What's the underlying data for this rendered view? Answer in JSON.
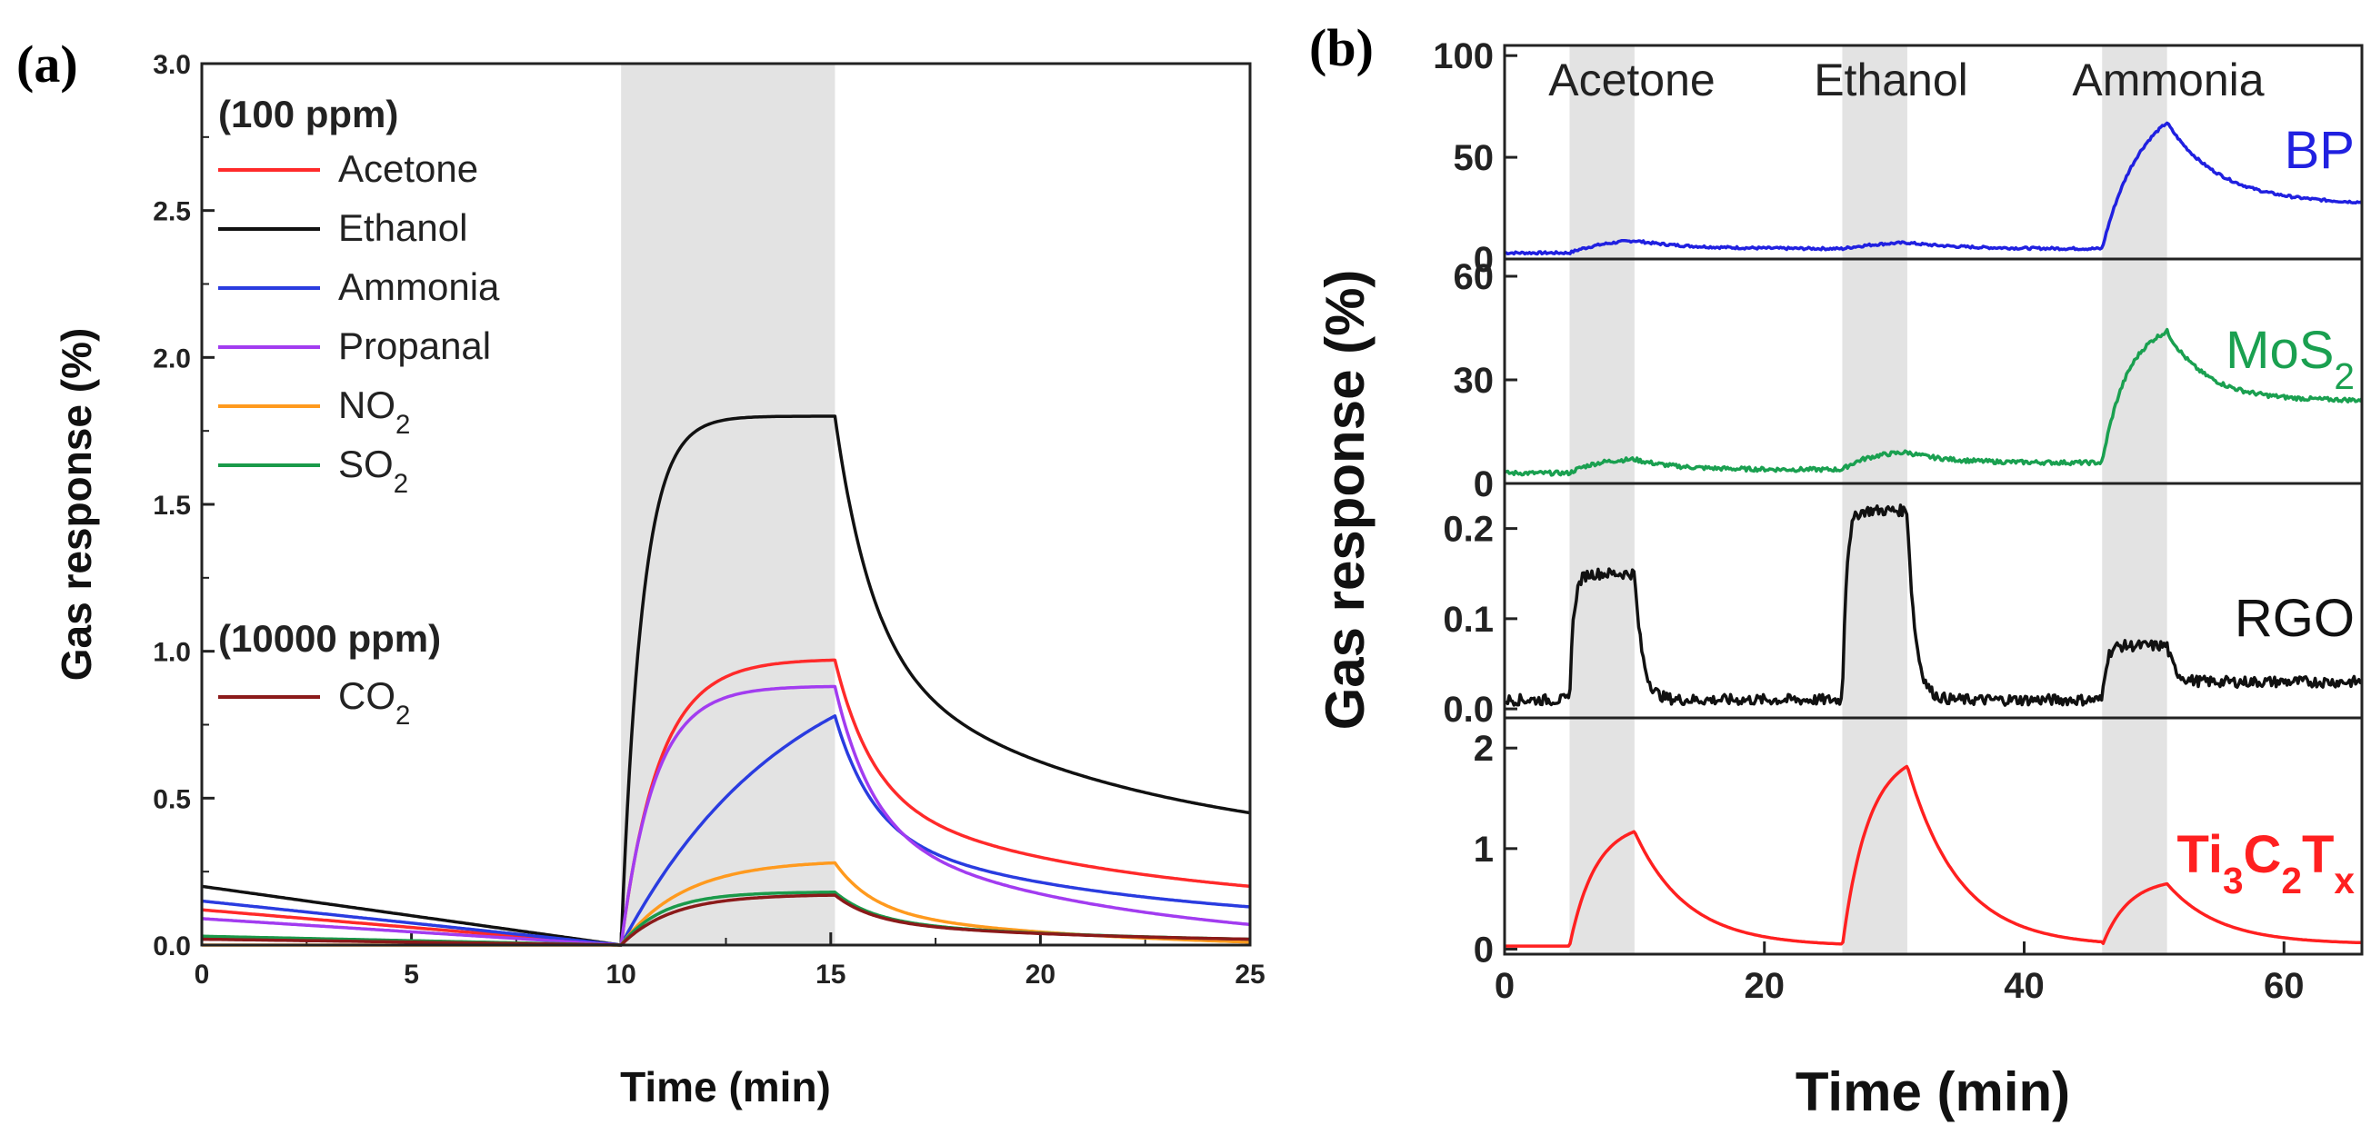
{
  "chart_data": [
    {
      "panel_label": "(a)",
      "type": "line",
      "xlabel": "Time (min)",
      "ylabel": "Gas response (%)",
      "xlim": [
        0,
        25
      ],
      "ylim": [
        0,
        3.0
      ],
      "x_ticks": [
        "0",
        "5",
        "10",
        "15",
        "20",
        "25"
      ],
      "y_ticks": [
        "0.0",
        "0.5",
        "1.0",
        "1.5",
        "2.0",
        "2.5",
        "3.0"
      ],
      "shaded_x": [
        10,
        15.1
      ],
      "legend": {
        "group1": "(100 ppm)",
        "group2": "(10000 ppm)"
      },
      "series": [
        {
          "name": "Acetone",
          "color": "#ff2a2a",
          "legend_label": [
            "Acetone"
          ],
          "start": 0.12,
          "end_base": 0.0,
          "peak": 0.97,
          "tau_rise": 0.9,
          "end_val": 0.2
        },
        {
          "name": "Ethanol",
          "color": "#111111",
          "legend_label": [
            "Ethanol"
          ],
          "start": 0.2,
          "end_base": 0.0,
          "peak": 1.8,
          "tau_rise": 0.5,
          "end_val": 0.45
        },
        {
          "name": "Ammonia",
          "color": "#2a3ce0",
          "legend_label": [
            "Ammonia"
          ],
          "start": 0.15,
          "end_base": 0.0,
          "peak": 0.78,
          "tau_rise": 4.0,
          "end_val": 0.13
        },
        {
          "name": "Propanal",
          "color": "#a23cf0",
          "legend_label": [
            "Propanal"
          ],
          "start": 0.09,
          "end_base": 0.0,
          "peak": 0.88,
          "tau_rise": 0.8,
          "end_val": 0.07
        },
        {
          "name": "NO2",
          "color": "#ff9a1e",
          "legend_label": [
            "NO",
            "2"
          ],
          "start": 0.0,
          "end_base": 0.0,
          "peak": 0.28,
          "tau_rise": 1.5,
          "end_val": 0.01
        },
        {
          "name": "SO2",
          "color": "#1a9a4a",
          "legend_label": [
            "SO",
            "2"
          ],
          "start": 0.03,
          "end_base": 0.0,
          "peak": 0.18,
          "tau_rise": 1.0,
          "end_val": 0.02
        },
        {
          "name": "CO2",
          "color": "#8b1a1a",
          "legend_label": [
            "CO",
            "2"
          ],
          "start": 0.02,
          "end_base": 0.0,
          "peak": 0.17,
          "tau_rise": 1.2,
          "end_val": 0.02
        }
      ]
    },
    {
      "panel_label": "(b)",
      "type": "line",
      "xlabel": "Time (min)",
      "ylabel": "Gas response (%)",
      "xlim": [
        0,
        66
      ],
      "x_ticks": [
        "0",
        "20",
        "40",
        "60"
      ],
      "shaded_x": [
        [
          5,
          10
        ],
        [
          26,
          31
        ],
        [
          46,
          51
        ]
      ],
      "gas_labels": [
        "Acetone",
        "Ethanol",
        "Ammonia"
      ],
      "subplots": [
        {
          "name": "BP",
          "label": [
            "BP"
          ],
          "color": "#2020e0",
          "ylim": [
            0,
            105
          ],
          "y_ticks": [
            "0",
            "50",
            "100"
          ],
          "y_tick_values": [
            0,
            50,
            100
          ],
          "baseline": 3,
          "responses": [
            9,
            8,
            67
          ],
          "tau_rise": 3.0,
          "tau_decay": 4.0,
          "decay_floor": [
            5,
            5,
            27
          ],
          "noise": 0.6
        },
        {
          "name": "MoS2",
          "label": [
            "MoS",
            "2"
          ],
          "color": "#1aa050",
          "ylim": [
            0,
            65
          ],
          "y_ticks": [
            "0",
            "30",
            "60"
          ],
          "y_tick_values": [
            0,
            30,
            60
          ],
          "baseline": 3,
          "responses": [
            7,
            9,
            44
          ],
          "tau_rise": 2.0,
          "tau_decay": 3.0,
          "decay_floor": [
            4,
            6,
            24
          ],
          "noise": 0.6
        },
        {
          "name": "RGO",
          "label": [
            "RGO"
          ],
          "color": "#111111",
          "ylim": [
            -0.01,
            0.25
          ],
          "y_ticks": [
            "0.0",
            "0.1",
            "0.2"
          ],
          "y_tick_values": [
            0,
            0.1,
            0.2
          ],
          "baseline": 0.01,
          "responses": [
            0.15,
            0.22,
            0.07
          ],
          "tau_rise": 0.3,
          "tau_decay": 0.6,
          "decay_floor": [
            0.01,
            0.01,
            0.03
          ],
          "noise": 0.006
        },
        {
          "name": "Ti3C2Tx",
          "label": [
            "Ti",
            "3",
            "C",
            "2",
            "T",
            "x"
          ],
          "color": "#ff2020",
          "ylim": [
            -0.05,
            2.3
          ],
          "y_ticks": [
            "0",
            "1",
            "2"
          ],
          "y_tick_values": [
            0,
            1,
            2
          ],
          "baseline": 0.03,
          "responses": [
            1.17,
            1.82,
            0.65
          ],
          "tau_rise": 2.0,
          "tau_decay": 4.0,
          "decay_floor": [
            0.03,
            0.03,
            0.05
          ],
          "noise": 0.0
        }
      ]
    }
  ]
}
